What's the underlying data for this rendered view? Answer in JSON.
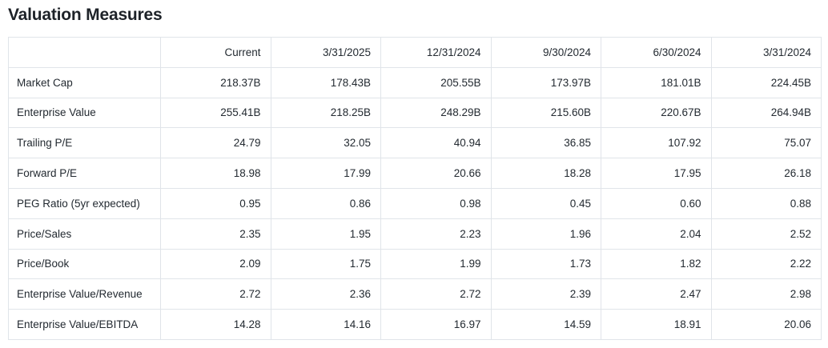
{
  "page": {
    "title": "Valuation Measures"
  },
  "colors": {
    "text": "#232a31",
    "title_text": "#1d2228",
    "border": "#e0e4e9",
    "background": "#ffffff"
  },
  "chart_data": {
    "type": "table",
    "title": "Valuation Measures",
    "columns": [
      "",
      "Current",
      "3/31/2025",
      "12/31/2024",
      "9/30/2024",
      "6/30/2024",
      "3/31/2024"
    ],
    "rows": [
      {
        "label": "Market Cap",
        "values": [
          "218.37B",
          "178.43B",
          "205.55B",
          "173.97B",
          "181.01B",
          "224.45B"
        ]
      },
      {
        "label": "Enterprise Value",
        "values": [
          "255.41B",
          "218.25B",
          "248.29B",
          "215.60B",
          "220.67B",
          "264.94B"
        ]
      },
      {
        "label": "Trailing P/E",
        "values": [
          "24.79",
          "32.05",
          "40.94",
          "36.85",
          "107.92",
          "75.07"
        ]
      },
      {
        "label": "Forward P/E",
        "values": [
          "18.98",
          "17.99",
          "20.66",
          "18.28",
          "17.95",
          "26.18"
        ]
      },
      {
        "label": "PEG Ratio (5yr expected)",
        "values": [
          "0.95",
          "0.86",
          "0.98",
          "0.45",
          "0.60",
          "0.88"
        ]
      },
      {
        "label": "Price/Sales",
        "values": [
          "2.35",
          "1.95",
          "2.23",
          "1.96",
          "2.04",
          "2.52"
        ]
      },
      {
        "label": "Price/Book",
        "values": [
          "2.09",
          "1.75",
          "1.99",
          "1.73",
          "1.82",
          "2.22"
        ]
      },
      {
        "label": "Enterprise Value/Revenue",
        "values": [
          "2.72",
          "2.36",
          "2.72",
          "2.39",
          "2.47",
          "2.98"
        ]
      },
      {
        "label": "Enterprise Value/EBITDA",
        "values": [
          "14.28",
          "14.16",
          "16.97",
          "14.59",
          "18.91",
          "20.06"
        ]
      }
    ]
  }
}
